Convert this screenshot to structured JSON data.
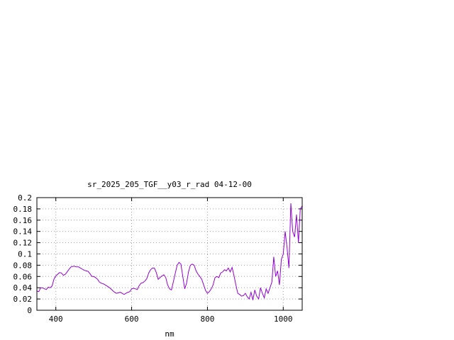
{
  "chart_data": {
    "type": "line",
    "title": "sr_2025_205_TGF__y03_r_rad 04-12-00",
    "xlabel": "nm",
    "ylabel": "",
    "xlim": [
      350,
      1050
    ],
    "ylim": [
      0,
      0.2
    ],
    "xticks": [
      400,
      600,
      800,
      1000
    ],
    "xtick_labels": [
      "400",
      "600",
      "800",
      "1000"
    ],
    "yticks": [
      0,
      0.02,
      0.04,
      0.06,
      0.08,
      0.1,
      0.12,
      0.14,
      0.16,
      0.18,
      0.2
    ],
    "ytick_labels": [
      "0",
      "0.02",
      "0.04",
      "0.06",
      "0.08",
      "0.1",
      "0.12",
      "0.14",
      "0.16",
      "0.18",
      "0.2"
    ],
    "grid": true,
    "legend": "none",
    "series": [
      {
        "color": "#9400d3",
        "x": [
          350,
          355,
          360,
          365,
          370,
          375,
          380,
          385,
          390,
          395,
          400,
          405,
          410,
          415,
          420,
          425,
          430,
          435,
          440,
          445,
          450,
          455,
          460,
          465,
          470,
          475,
          480,
          485,
          490,
          495,
          500,
          505,
          510,
          515,
          520,
          525,
          530,
          535,
          540,
          545,
          550,
          555,
          560,
          565,
          570,
          575,
          580,
          585,
          590,
          595,
          600,
          605,
          610,
          615,
          620,
          625,
          630,
          635,
          640,
          645,
          650,
          655,
          660,
          665,
          670,
          675,
          680,
          685,
          690,
          695,
          700,
          705,
          710,
          715,
          720,
          725,
          730,
          735,
          740,
          745,
          750,
          755,
          760,
          765,
          770,
          775,
          780,
          785,
          790,
          795,
          800,
          805,
          810,
          815,
          820,
          825,
          830,
          835,
          840,
          845,
          850,
          855,
          860,
          865,
          870,
          875,
          880,
          885,
          890,
          895,
          900,
          905,
          910,
          915,
          920,
          925,
          930,
          935,
          940,
          945,
          950,
          955,
          960,
          965,
          970,
          975,
          980,
          985,
          990,
          995,
          1000,
          1005,
          1010,
          1015,
          1020,
          1025,
          1030,
          1035,
          1040,
          1045,
          1050
        ],
        "y": [
          0.034,
          0.033,
          0.04,
          0.04,
          0.038,
          0.037,
          0.041,
          0.04,
          0.043,
          0.055,
          0.061,
          0.064,
          0.067,
          0.066,
          0.062,
          0.064,
          0.068,
          0.073,
          0.077,
          0.078,
          0.078,
          0.077,
          0.077,
          0.075,
          0.073,
          0.071,
          0.07,
          0.069,
          0.065,
          0.06,
          0.06,
          0.058,
          0.055,
          0.05,
          0.048,
          0.047,
          0.045,
          0.043,
          0.041,
          0.038,
          0.035,
          0.032,
          0.03,
          0.031,
          0.032,
          0.03,
          0.028,
          0.03,
          0.032,
          0.033,
          0.038,
          0.039,
          0.038,
          0.037,
          0.044,
          0.048,
          0.049,
          0.052,
          0.056,
          0.066,
          0.072,
          0.075,
          0.075,
          0.067,
          0.055,
          0.058,
          0.061,
          0.063,
          0.058,
          0.045,
          0.038,
          0.036,
          0.05,
          0.065,
          0.08,
          0.085,
          0.082,
          0.06,
          0.038,
          0.048,
          0.068,
          0.08,
          0.082,
          0.08,
          0.07,
          0.064,
          0.06,
          0.055,
          0.045,
          0.035,
          0.03,
          0.033,
          0.038,
          0.045,
          0.058,
          0.06,
          0.058,
          0.066,
          0.068,
          0.072,
          0.07,
          0.075,
          0.068,
          0.076,
          0.062,
          0.045,
          0.03,
          0.028,
          0.025,
          0.026,
          0.03,
          0.024,
          0.02,
          0.032,
          0.018,
          0.036,
          0.025,
          0.02,
          0.04,
          0.03,
          0.022,
          0.038,
          0.03,
          0.04,
          0.05,
          0.095,
          0.06,
          0.07,
          0.045,
          0.09,
          0.1,
          0.14,
          0.112,
          0.075,
          0.19,
          0.14,
          0.13,
          0.17,
          0.12,
          0.18,
          0.185
        ]
      }
    ]
  }
}
